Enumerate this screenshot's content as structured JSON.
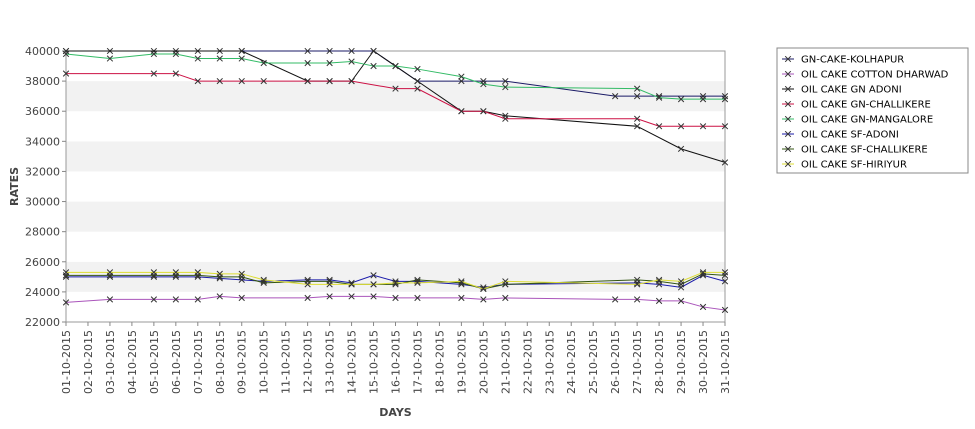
{
  "chart_data": {
    "type": "line",
    "title": "",
    "xlabel": "DAYS",
    "ylabel": "RATES",
    "ylim": [
      22000,
      40000
    ],
    "yticks": [
      22000,
      24000,
      26000,
      28000,
      30000,
      32000,
      34000,
      36000,
      38000,
      40000
    ],
    "grid": "alternating horizontal bands",
    "legend_position": "right",
    "categories": [
      "01-10-2015",
      "02-10-2015",
      "03-10-2015",
      "04-10-2015",
      "05-10-2015",
      "06-10-2015",
      "07-10-2015",
      "08-10-2015",
      "09-10-2015",
      "10-10-2015",
      "11-10-2015",
      "12-10-2015",
      "13-10-2015",
      "14-10-2015",
      "15-10-2015",
      "16-10-2015",
      "17-10-2015",
      "18-10-2015",
      "19-10-2015",
      "20-10-2015",
      "21-10-2015",
      "22-10-2015",
      "23-10-2015",
      "24-10-2015",
      "25-10-2015",
      "26-10-2015",
      "27-10-2015",
      "28-10-2015",
      "29-10-2015",
      "30-10-2015",
      "31-10-2015"
    ],
    "series": [
      {
        "name": "GN-CAKE-KOLHAPUR",
        "color": "#1a1a66",
        "markers": [
          0,
          2,
          4,
          5,
          6,
          7,
          8,
          11,
          12,
          13,
          14,
          15,
          16,
          18,
          19,
          20,
          25,
          26,
          27,
          29,
          30
        ],
        "values": [
          40000,
          null,
          40000,
          null,
          40000,
          40000,
          40000,
          40000,
          40000,
          null,
          null,
          40000,
          40000,
          40000,
          40000,
          39000,
          38000,
          null,
          38000,
          38000,
          38000,
          null,
          null,
          null,
          null,
          37000,
          37000,
          37000,
          null,
          37000,
          37000
        ]
      },
      {
        "name": "OIL CAKE COTTON DHARWAD",
        "color": "#aa55bb",
        "markers": [
          0,
          2,
          4,
          5,
          6,
          7,
          8,
          11,
          12,
          13,
          14,
          15,
          16,
          18,
          19,
          20,
          25,
          26,
          27,
          28,
          29,
          30
        ],
        "values": [
          23300,
          null,
          23500,
          null,
          23500,
          23500,
          23500,
          23700,
          23600,
          null,
          null,
          23600,
          23700,
          23700,
          23700,
          23600,
          23600,
          null,
          23600,
          23500,
          23600,
          null,
          null,
          null,
          null,
          23500,
          23500,
          23400,
          23400,
          23000,
          22800
        ]
      },
      {
        "name": "OIL CAKE GN ADONI",
        "color": "#111111",
        "markers": [
          0,
          8,
          11,
          12,
          13,
          14,
          16,
          18,
          19,
          20,
          26,
          28,
          30
        ],
        "values": [
          40000,
          null,
          null,
          null,
          null,
          null,
          null,
          null,
          40000,
          null,
          null,
          38000,
          38000,
          38000,
          40000,
          null,
          38000,
          null,
          36000,
          36000,
          35700,
          null,
          null,
          null,
          null,
          null,
          35000,
          null,
          33500,
          null,
          32600
        ]
      },
      {
        "name": "OIL CAKE GN-CHALLIKERE",
        "color": "#cc1144",
        "markers": [
          0,
          4,
          5,
          6,
          7,
          8,
          9,
          11,
          12,
          13,
          15,
          16,
          18,
          19,
          20,
          26,
          27,
          28,
          29,
          30
        ],
        "values": [
          38500,
          null,
          null,
          null,
          38500,
          38500,
          38000,
          38000,
          38000,
          38000,
          null,
          38000,
          38000,
          38000,
          null,
          37500,
          37500,
          null,
          36000,
          36000,
          35500,
          null,
          null,
          null,
          null,
          null,
          35500,
          35000,
          35000,
          35000,
          35000
        ]
      },
      {
        "name": "OIL CAKE GN-MANGALORE",
        "color": "#33bb66",
        "markers": [
          0,
          2,
          4,
          5,
          6,
          7,
          8,
          9,
          11,
          12,
          13,
          14,
          15,
          16,
          18,
          19,
          20,
          26,
          27,
          28,
          29,
          30
        ],
        "values": [
          39800,
          null,
          39500,
          null,
          39800,
          39800,
          39500,
          39500,
          39500,
          39200,
          null,
          39200,
          39200,
          39300,
          39000,
          39000,
          38800,
          null,
          38300,
          37800,
          37600,
          null,
          null,
          null,
          null,
          null,
          37500,
          36900,
          36800,
          36800,
          36800
        ]
      },
      {
        "name": "OIL CAKE SF-ADONI",
        "color": "#1a1aaa",
        "markers": [
          0,
          2,
          4,
          5,
          6,
          7,
          8,
          9,
          11,
          12,
          13,
          14,
          15,
          16,
          18,
          19,
          20,
          26,
          27,
          28,
          29,
          30
        ],
        "values": [
          25000,
          null,
          25000,
          null,
          25000,
          25000,
          25000,
          24900,
          24800,
          24700,
          null,
          24800,
          24800,
          24600,
          25100,
          24700,
          24700,
          null,
          24500,
          24300,
          24500,
          null,
          null,
          null,
          null,
          null,
          24600,
          24500,
          24300,
          25100,
          24700
        ]
      },
      {
        "name": "OIL CAKE SF-CHALLIKERE",
        "color": "#335511",
        "markers": [
          0,
          2,
          4,
          5,
          6,
          7,
          8,
          9,
          11,
          12,
          13,
          14,
          15,
          16,
          18,
          19,
          20,
          26,
          27,
          28,
          29,
          30
        ],
        "values": [
          25100,
          null,
          25100,
          null,
          25100,
          25100,
          25100,
          25000,
          25000,
          24600,
          null,
          24700,
          24700,
          24500,
          24500,
          24500,
          24800,
          null,
          24600,
          24200,
          24500,
          null,
          null,
          null,
          null,
          null,
          24800,
          24700,
          24500,
          25200,
          25100
        ]
      },
      {
        "name": "OIL CAKE SF-HIRIYUR",
        "color": "#dddd33",
        "markers": [
          0,
          2,
          4,
          5,
          6,
          7,
          8,
          9,
          11,
          12,
          13,
          14,
          15,
          16,
          18,
          19,
          20,
          26,
          27,
          28,
          29,
          30
        ],
        "values": [
          25300,
          null,
          25300,
          null,
          25300,
          25300,
          25300,
          25200,
          25200,
          24800,
          null,
          24500,
          24500,
          24500,
          24500,
          24600,
          24600,
          null,
          24700,
          24200,
          24700,
          null,
          null,
          null,
          null,
          null,
          24500,
          24800,
          24700,
          25300,
          25300
        ]
      }
    ]
  }
}
